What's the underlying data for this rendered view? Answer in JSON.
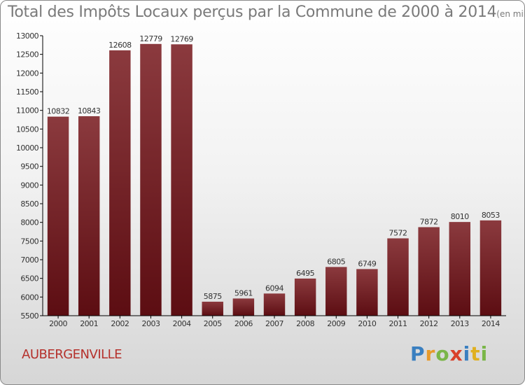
{
  "title": "Total des Impôts Locaux perçus par la Commune de 2000 à 2014",
  "title_unit": "(en milliers d'€)",
  "commune": "AUBERGENVILLE",
  "logo_text": "Proxiti",
  "colors": {
    "bar_top": "#8b3a3e",
    "bar_bottom": "#5c0d12",
    "title": "#7a7a7a",
    "commune": "#b5312c",
    "axis": "#000000"
  },
  "chart_data": {
    "type": "bar",
    "title": "Total des Impôts Locaux perçus par la Commune de 2000 à 2014",
    "xlabel": "",
    "ylabel": "",
    "categories": [
      "2000",
      "2001",
      "2002",
      "2003",
      "2004",
      "2005",
      "2006",
      "2007",
      "2008",
      "2009",
      "2010",
      "2011",
      "2012",
      "2013",
      "2014"
    ],
    "values": [
      10832,
      10843,
      12608,
      12779,
      12769,
      5875,
      5961,
      6094,
      6495,
      6805,
      6749,
      7572,
      7872,
      8010,
      8053
    ],
    "ylim": [
      5500,
      13000
    ],
    "yticks": [
      5500,
      6000,
      6500,
      7000,
      7500,
      8000,
      8500,
      9000,
      9500,
      10000,
      10500,
      11000,
      11500,
      12000,
      12500,
      13000
    ],
    "grid": false,
    "legend": "none"
  }
}
